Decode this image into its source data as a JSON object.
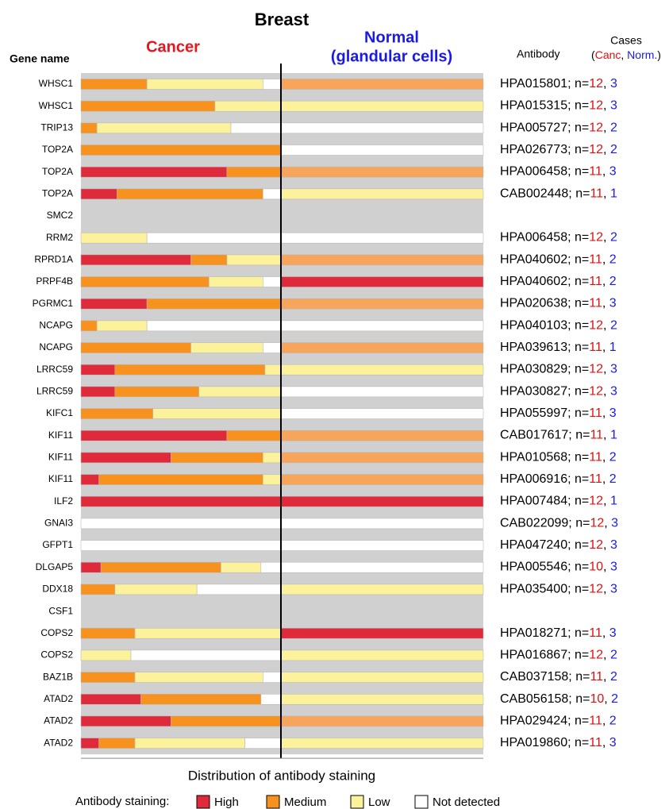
{
  "chart_data": {
    "type": "stacked_bar",
    "orientation": "horizontal",
    "title": "Breast",
    "gene_header": "Gene name",
    "antibody_header": "Antibody",
    "cases_header": "Cases",
    "cases_legend": [
      "(",
      "Canc",
      ", ",
      "Norm.",
      ")"
    ],
    "cases_colors": [
      "#e0100f",
      "#1a1ae6"
    ],
    "xlabel": "Distribution of antibody staining",
    "legend_title": "Antibody staining:",
    "legend": "bottom",
    "xlim": [
      0,
      100
    ],
    "categories": [
      "WHSC1",
      "WHSC1",
      "TRIP13",
      "TOP2A",
      "TOP2A",
      "TOP2A",
      "SMC2",
      "RRM2",
      "RPRD1A",
      "PRPF4B",
      "PGRMC1",
      "NCAPG",
      "NCAPG",
      "LRRC59",
      "LRRC59",
      "KIFC1",
      "KIF11",
      "KIF11",
      "KIF11",
      "ILF2",
      "GNAI3",
      "GFPT1",
      "DLGAP5",
      "DDX18",
      "CSF1",
      "COPS2",
      "COPS2",
      "BAZ1B",
      "ATAD2",
      "ATAD2",
      "ATAD2"
    ],
    "panels": [
      {
        "title": [
          "Cancer"
        ],
        "title_color": "#e8141e",
        "series": [
          {
            "name": "High",
            "color": "#df2a3c",
            "values": [
              0,
              0,
              0,
              0,
              73,
              18,
              null,
              0,
              55,
              0,
              33,
              0,
              0,
              17,
              17,
              0,
              73,
              45,
              9,
              100,
              0,
              0,
              10,
              0,
              null,
              0,
              0,
              0,
              30,
              45,
              9
            ]
          },
          {
            "name": "Medium",
            "color": "#f7921f",
            "values": [
              33,
              67,
              8,
              100,
              27,
              73,
              null,
              0,
              18,
              64,
              67,
              8,
              55,
              75,
              42,
              36,
              27,
              46,
              82,
              0,
              0,
              0,
              60,
              17,
              null,
              27,
              0,
              27,
              60,
              55,
              18
            ]
          },
          {
            "name": "Low",
            "color": "#fcf29c",
            "values": [
              58,
              33,
              67,
              0,
              0,
              0,
              null,
              33,
              27,
              27,
              0,
              25,
              36,
              8,
              41,
              64,
              0,
              9,
              9,
              0,
              0,
              0,
              20,
              41,
              null,
              73,
              25,
              64,
              0,
              0,
              55
            ]
          },
          {
            "name": "Not detected",
            "color": "#ffffff",
            "values": [
              9,
              0,
              25,
              0,
              0,
              9,
              null,
              67,
              0,
              9,
              0,
              67,
              9,
              0,
              0,
              0,
              0,
              0,
              0,
              0,
              100,
              100,
              10,
              42,
              null,
              0,
              75,
              9,
              10,
              0,
              18
            ]
          }
        ]
      },
      {
        "title": [
          "Normal",
          "(glandular cells)"
        ],
        "title_color": "#1a1ae6",
        "series": [
          {
            "name": "High",
            "color": "#df2a3c",
            "values": [
              0,
              0,
              0,
              0,
              0,
              0,
              null,
              0,
              0,
              100,
              0,
              0,
              0,
              0,
              0,
              0,
              0,
              0,
              0,
              100,
              0,
              0,
              0,
              0,
              null,
              100,
              0,
              0,
              0,
              0,
              0
            ]
          },
          {
            "name": "Medium",
            "color": "#f8a55c",
            "values": [
              100,
              0,
              0,
              0,
              100,
              0,
              null,
              0,
              100,
              0,
              100,
              0,
              100,
              0,
              0,
              0,
              100,
              100,
              100,
              0,
              0,
              0,
              0,
              0,
              null,
              0,
              0,
              0,
              0,
              100,
              0
            ]
          },
          {
            "name": "Low",
            "color": "#fcf29c",
            "values": [
              0,
              100,
              0,
              0,
              0,
              100,
              null,
              0,
              0,
              0,
              0,
              0,
              0,
              100,
              0,
              0,
              0,
              0,
              0,
              0,
              0,
              0,
              0,
              100,
              null,
              0,
              100,
              100,
              100,
              0,
              100
            ]
          },
          {
            "name": "Not detected",
            "color": "#ffffff",
            "values": [
              0,
              0,
              100,
              100,
              0,
              0,
              null,
              100,
              0,
              0,
              0,
              100,
              0,
              0,
              100,
              100,
              0,
              0,
              0,
              0,
              100,
              100,
              100,
              0,
              null,
              0,
              0,
              0,
              0,
              0,
              0
            ]
          }
        ]
      }
    ],
    "n_prefix": "; n=",
    "n_separator": ", ",
    "antibodies": [
      "HPA015801",
      "HPA015315",
      "HPA005727",
      "HPA026773",
      "HPA006458",
      "CAB002448",
      null,
      "HPA006458",
      "HPA040602",
      "HPA040602",
      "HPA020638",
      "HPA040103",
      "HPA039613",
      "HPA030829",
      "HPA030827",
      "HPA055997",
      "CAB017617",
      "HPA010568",
      "HPA006916",
      "HPA007484",
      "CAB022099",
      "HPA047240",
      "HPA005546",
      "HPA035400",
      null,
      "HPA018271",
      "HPA016867",
      "CAB037158",
      "CAB056158",
      "HPA029424",
      "HPA019860"
    ],
    "n_cancer": [
      12,
      12,
      12,
      12,
      11,
      11,
      null,
      12,
      11,
      11,
      11,
      12,
      11,
      12,
      12,
      11,
      11,
      11,
      11,
      12,
      12,
      12,
      10,
      12,
      null,
      11,
      12,
      11,
      10,
      11,
      11
    ],
    "n_normal": [
      3,
      3,
      2,
      2,
      3,
      1,
      null,
      2,
      2,
      2,
      3,
      2,
      1,
      3,
      3,
      3,
      1,
      2,
      2,
      1,
      3,
      3,
      3,
      3,
      null,
      3,
      2,
      2,
      2,
      2,
      3
    ]
  }
}
